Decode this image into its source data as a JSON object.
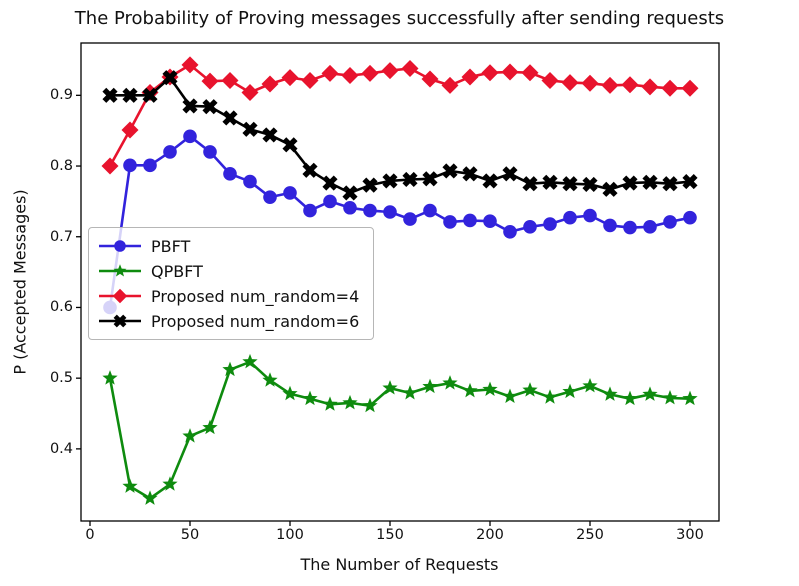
{
  "figure": {
    "type": "matplotlib-line-chart"
  },
  "chart_data": {
    "type": "line",
    "title": "The Probability of Proving messages successfully after sending requests",
    "xlabel": "The Number of Requests",
    "ylabel": "P (Accepted Messages)",
    "grid": false,
    "legend_position": "center-left",
    "xlim": [
      -4.5,
      314.5
    ],
    "ylim": [
      0.298,
      0.974
    ],
    "xticks": [
      0,
      50,
      100,
      150,
      200,
      250,
      300
    ],
    "yticks": [
      0.4,
      0.5,
      0.6,
      0.7,
      0.8,
      0.9
    ],
    "x": [
      10,
      20,
      30,
      40,
      50,
      60,
      70,
      80,
      90,
      100,
      110,
      120,
      130,
      140,
      150,
      160,
      170,
      180,
      190,
      200,
      210,
      220,
      230,
      240,
      250,
      260,
      270,
      280,
      290,
      300
    ],
    "series": [
      {
        "name": "PBFT",
        "color": "#3223dc",
        "marker": "circle",
        "values": [
          0.6,
          0.801,
          0.801,
          0.82,
          0.842,
          0.82,
          0.789,
          0.778,
          0.756,
          0.762,
          0.737,
          0.75,
          0.741,
          0.737,
          0.735,
          0.725,
          0.737,
          0.721,
          0.723,
          0.722,
          0.707,
          0.714,
          0.718,
          0.727,
          0.73,
          0.716,
          0.713,
          0.714,
          0.721,
          0.727
        ]
      },
      {
        "name": "QPBFT",
        "color": "#0e8b0e",
        "marker": "star",
        "values": [
          0.5,
          0.347,
          0.33,
          0.35,
          0.418,
          0.43,
          0.512,
          0.523,
          0.497,
          0.478,
          0.471,
          0.463,
          0.465,
          0.461,
          0.486,
          0.479,
          0.488,
          0.493,
          0.482,
          0.484,
          0.474,
          0.483,
          0.473,
          0.481,
          0.489,
          0.477,
          0.471,
          0.477,
          0.472,
          0.471
        ]
      },
      {
        "name": "Proposed num_random=4",
        "color": "#e8132d",
        "marker": "diamond",
        "values": [
          0.8,
          0.851,
          0.904,
          0.926,
          0.943,
          0.92,
          0.921,
          0.904,
          0.916,
          0.925,
          0.921,
          0.931,
          0.928,
          0.931,
          0.935,
          0.938,
          0.923,
          0.914,
          0.926,
          0.932,
          0.933,
          0.932,
          0.921,
          0.918,
          0.917,
          0.914,
          0.915,
          0.912,
          0.91,
          0.91
        ]
      },
      {
        "name": "Proposed num_random=6",
        "color": "#000000",
        "marker": "x",
        "values": [
          0.9,
          0.9,
          0.9,
          0.925,
          0.885,
          0.884,
          0.868,
          0.852,
          0.844,
          0.83,
          0.794,
          0.776,
          0.762,
          0.773,
          0.779,
          0.781,
          0.782,
          0.793,
          0.789,
          0.779,
          0.789,
          0.775,
          0.777,
          0.775,
          0.774,
          0.767,
          0.776,
          0.777,
          0.775,
          0.778
        ]
      }
    ]
  }
}
